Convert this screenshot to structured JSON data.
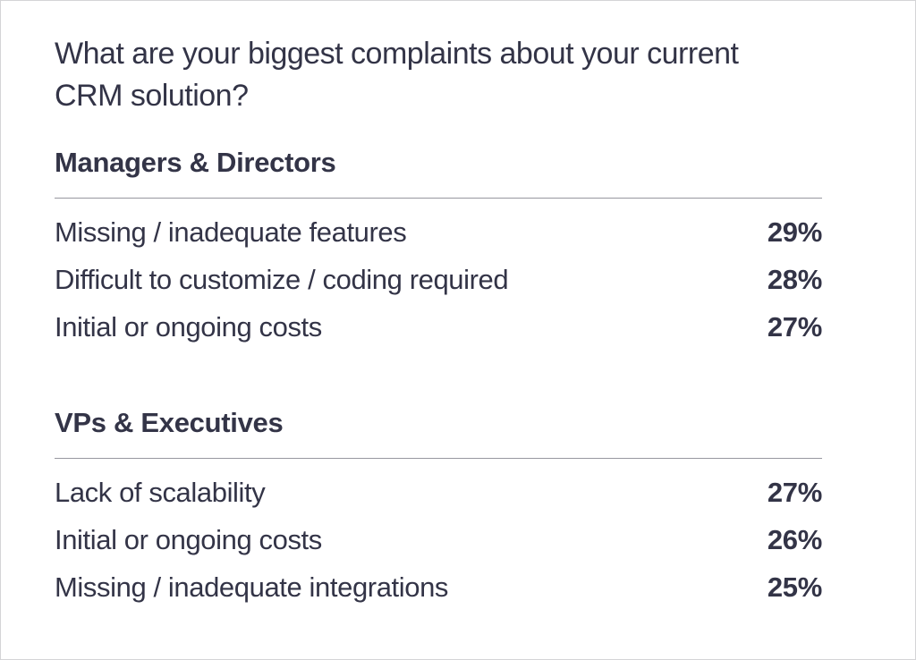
{
  "header": {
    "title_lines": [
      "What are your biggest complaints about your current",
      "CRM solution?"
    ]
  },
  "colors": {
    "text": "#333447",
    "divider": "#97979f",
    "background": "#ffffff",
    "frame_border": "#d4d4d6"
  },
  "chart_data": {
    "type": "table",
    "title": "What are your biggest complaints about your current CRM solution?",
    "unit": "percent",
    "legend_position": "none",
    "groups": [
      {
        "name": "Managers & Directors",
        "rows": [
          {
            "label": "Missing / inadequate features",
            "value": 29,
            "display": "29%"
          },
          {
            "label": "Difficult to customize / coding required",
            "value": 28,
            "display": "28%"
          },
          {
            "label": "Initial or ongoing costs",
            "value": 27,
            "display": "27%"
          }
        ]
      },
      {
        "name": "VPs & Executives",
        "rows": [
          {
            "label": "Lack of scalability",
            "value": 27,
            "display": "27%"
          },
          {
            "label": "Initial or ongoing costs",
            "value": 26,
            "display": "26%"
          },
          {
            "label": "Missing / inadequate integrations",
            "value": 25,
            "display": "25%"
          }
        ]
      }
    ]
  }
}
